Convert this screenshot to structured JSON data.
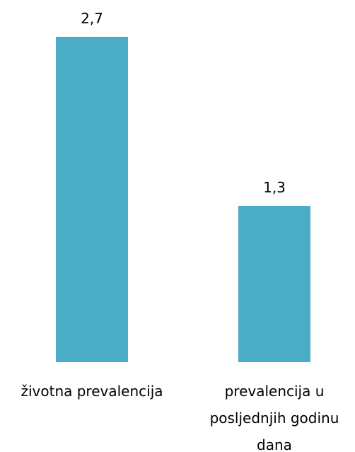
{
  "chart_data": {
    "type": "bar",
    "categories": [
      "životna prevalencija",
      "prevalencija u posljednjih godinu dana"
    ],
    "values": [
      2.7,
      1.3
    ],
    "value_labels": [
      "2,7",
      "1,3"
    ],
    "color": "#4bacc6"
  }
}
